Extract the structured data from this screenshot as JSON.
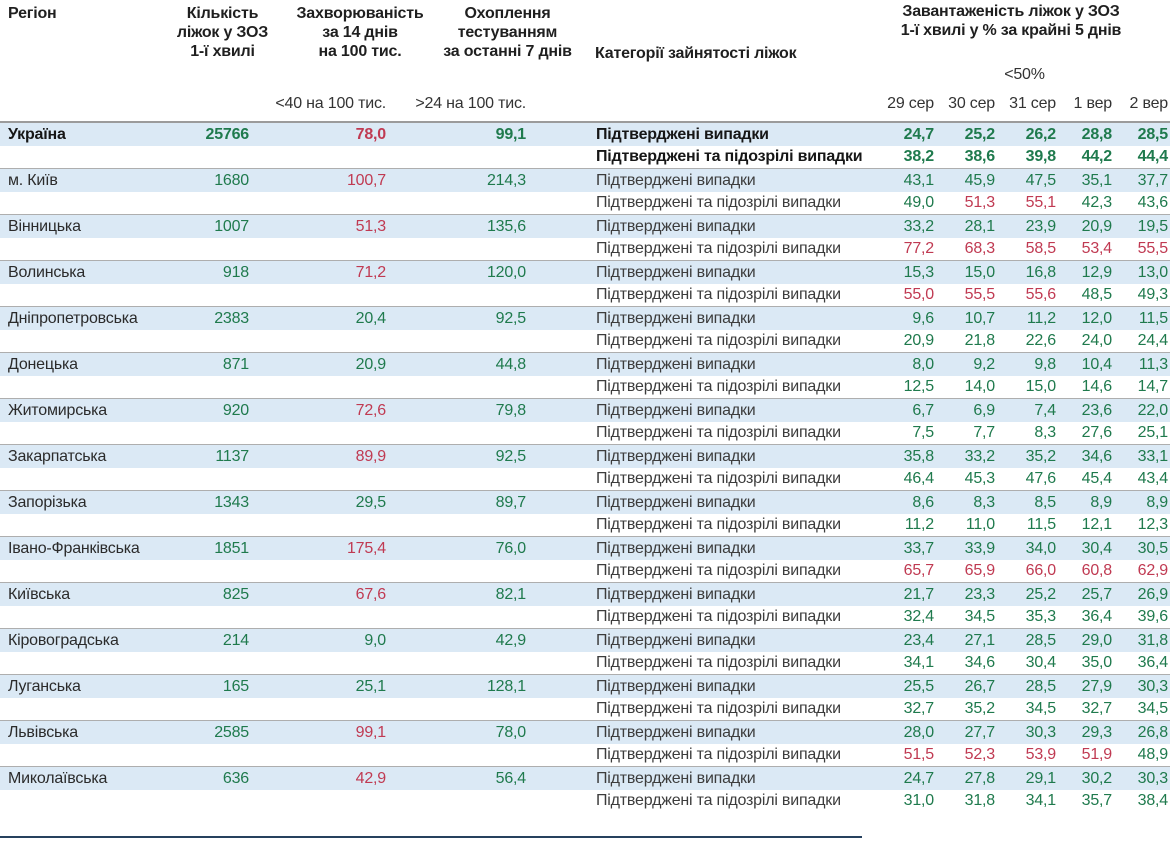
{
  "header": {
    "col_region": "Регіон",
    "col_beds": "Кількість\nліжок у ЗОЗ\n1-ї хвилі",
    "col_incidence": "Захворюваність\nза 14 днів\nна 100 тис.",
    "col_testing": "Охоплення\nтестуванням\nза останні 7 днів",
    "col_category": "Категорії зайнятості ліжок",
    "col_occupancy": "Завантаженість ліжок у ЗОЗ\n1-ї хвилі у % за крайні 5 днів",
    "sub_incidence": "<40 на 100 тис.",
    "sub_testing": ">24 на 100 тис.",
    "sub_occupancy": "<50%"
  },
  "labels": {
    "confirmed": "Підтверджені випадки",
    "suspected": "Підтверджені та підозрілі випадки"
  },
  "colors": {
    "green": "#1f7a4d",
    "red": "#c03a52",
    "row_highlight": "#dbe9f5",
    "separator": "#aeaeae",
    "freeze_line": "#26415e"
  },
  "chart_data": {
    "type": "table",
    "title": "Завантаженість ліжок у ЗОЗ 1-ї хвилі у % за крайні 5 днів",
    "date_columns": [
      "29 сер",
      "30 сер",
      "31 сер",
      "1 вер",
      "2 вер"
    ],
    "category_rows": [
      "Підтверджені випадки",
      "Підтверджені та підозрілі випадки"
    ],
    "rows": [
      {
        "region": "Україна",
        "bold": true,
        "beds": "25766",
        "beds_color": "g",
        "incidence": "78,0",
        "incidence_color": "r",
        "testing": "99,1",
        "testing_color": "g",
        "confirmed": [
          "24,7",
          "25,2",
          "26,2",
          "28,8",
          "28,5"
        ],
        "confirmed_colors": [
          "g",
          "g",
          "g",
          "g",
          "g"
        ],
        "suspected": [
          "38,2",
          "38,6",
          "39,8",
          "44,2",
          "44,4"
        ],
        "suspected_colors": [
          "g",
          "g",
          "g",
          "g",
          "g"
        ]
      },
      {
        "region": "м. Київ",
        "bold": false,
        "beds": "1680",
        "beds_color": "g",
        "incidence": "100,7",
        "incidence_color": "r",
        "testing": "214,3",
        "testing_color": "g",
        "confirmed": [
          "43,1",
          "45,9",
          "47,5",
          "35,1",
          "37,7"
        ],
        "confirmed_colors": [
          "g",
          "g",
          "g",
          "g",
          "g"
        ],
        "suspected": [
          "49,0",
          "51,3",
          "55,1",
          "42,3",
          "43,6"
        ],
        "suspected_colors": [
          "g",
          "r",
          "r",
          "g",
          "g"
        ]
      },
      {
        "region": "Вінницька",
        "bold": false,
        "beds": "1007",
        "beds_color": "g",
        "incidence": "51,3",
        "incidence_color": "r",
        "testing": "135,6",
        "testing_color": "g",
        "confirmed": [
          "33,2",
          "28,1",
          "23,9",
          "20,9",
          "19,5"
        ],
        "confirmed_colors": [
          "g",
          "g",
          "g",
          "g",
          "g"
        ],
        "suspected": [
          "77,2",
          "68,3",
          "58,5",
          "53,4",
          "55,5"
        ],
        "suspected_colors": [
          "r",
          "r",
          "r",
          "r",
          "r"
        ]
      },
      {
        "region": "Волинська",
        "bold": false,
        "beds": "918",
        "beds_color": "g",
        "incidence": "71,2",
        "incidence_color": "r",
        "testing": "120,0",
        "testing_color": "g",
        "confirmed": [
          "15,3",
          "15,0",
          "16,8",
          "12,9",
          "13,0"
        ],
        "confirmed_colors": [
          "g",
          "g",
          "g",
          "g",
          "g"
        ],
        "suspected": [
          "55,0",
          "55,5",
          "55,6",
          "48,5",
          "49,3"
        ],
        "suspected_colors": [
          "r",
          "r",
          "r",
          "g",
          "g"
        ]
      },
      {
        "region": "Дніпропетровська",
        "bold": false,
        "beds": "2383",
        "beds_color": "g",
        "incidence": "20,4",
        "incidence_color": "g",
        "testing": "92,5",
        "testing_color": "g",
        "confirmed": [
          "9,6",
          "10,7",
          "11,2",
          "12,0",
          "11,5"
        ],
        "confirmed_colors": [
          "g",
          "g",
          "g",
          "g",
          "g"
        ],
        "suspected": [
          "20,9",
          "21,8",
          "22,6",
          "24,0",
          "24,4"
        ],
        "suspected_colors": [
          "g",
          "g",
          "g",
          "g",
          "g"
        ]
      },
      {
        "region": "Донецька",
        "bold": false,
        "beds": "871",
        "beds_color": "g",
        "incidence": "20,9",
        "incidence_color": "g",
        "testing": "44,8",
        "testing_color": "g",
        "confirmed": [
          "8,0",
          "9,2",
          "9,8",
          "10,4",
          "11,3"
        ],
        "confirmed_colors": [
          "g",
          "g",
          "g",
          "g",
          "g"
        ],
        "suspected": [
          "12,5",
          "14,0",
          "15,0",
          "14,6",
          "14,7"
        ],
        "suspected_colors": [
          "g",
          "g",
          "g",
          "g",
          "g"
        ]
      },
      {
        "region": "Житомирська",
        "bold": false,
        "beds": "920",
        "beds_color": "g",
        "incidence": "72,6",
        "incidence_color": "r",
        "testing": "79,8",
        "testing_color": "g",
        "confirmed": [
          "6,7",
          "6,9",
          "7,4",
          "23,6",
          "22,0"
        ],
        "confirmed_colors": [
          "g",
          "g",
          "g",
          "g",
          "g"
        ],
        "suspected": [
          "7,5",
          "7,7",
          "8,3",
          "27,6",
          "25,1"
        ],
        "suspected_colors": [
          "g",
          "g",
          "g",
          "g",
          "g"
        ]
      },
      {
        "region": "Закарпатська",
        "bold": false,
        "beds": "1137",
        "beds_color": "g",
        "incidence": "89,9",
        "incidence_color": "r",
        "testing": "92,5",
        "testing_color": "g",
        "confirmed": [
          "35,8",
          "33,2",
          "35,2",
          "34,6",
          "33,1"
        ],
        "confirmed_colors": [
          "g",
          "g",
          "g",
          "g",
          "g"
        ],
        "suspected": [
          "46,4",
          "45,3",
          "47,6",
          "45,4",
          "43,4"
        ],
        "suspected_colors": [
          "g",
          "g",
          "g",
          "g",
          "g"
        ]
      },
      {
        "region": "Запорізька",
        "bold": false,
        "beds": "1343",
        "beds_color": "g",
        "incidence": "29,5",
        "incidence_color": "g",
        "testing": "89,7",
        "testing_color": "g",
        "confirmed": [
          "8,6",
          "8,3",
          "8,5",
          "8,9",
          "8,9"
        ],
        "confirmed_colors": [
          "g",
          "g",
          "g",
          "g",
          "g"
        ],
        "suspected": [
          "11,2",
          "11,0",
          "11,5",
          "12,1",
          "12,3"
        ],
        "suspected_colors": [
          "g",
          "g",
          "g",
          "g",
          "g"
        ]
      },
      {
        "region": "Івано-Франківська",
        "bold": false,
        "beds": "1851",
        "beds_color": "g",
        "incidence": "175,4",
        "incidence_color": "r",
        "testing": "76,0",
        "testing_color": "g",
        "confirmed": [
          "33,7",
          "33,9",
          "34,0",
          "30,4",
          "30,5"
        ],
        "confirmed_colors": [
          "g",
          "g",
          "g",
          "g",
          "g"
        ],
        "suspected": [
          "65,7",
          "65,9",
          "66,0",
          "60,8",
          "62,9"
        ],
        "suspected_colors": [
          "r",
          "r",
          "r",
          "r",
          "r"
        ]
      },
      {
        "region": "Київська",
        "bold": false,
        "beds": "825",
        "beds_color": "g",
        "incidence": "67,6",
        "incidence_color": "r",
        "testing": "82,1",
        "testing_color": "g",
        "confirmed": [
          "21,7",
          "23,3",
          "25,2",
          "25,7",
          "26,9"
        ],
        "confirmed_colors": [
          "g",
          "g",
          "g",
          "g",
          "g"
        ],
        "suspected": [
          "32,4",
          "34,5",
          "35,3",
          "36,4",
          "39,6"
        ],
        "suspected_colors": [
          "g",
          "g",
          "g",
          "g",
          "g"
        ]
      },
      {
        "region": "Кіровоградська",
        "bold": false,
        "beds": "214",
        "beds_color": "g",
        "incidence": "9,0",
        "incidence_color": "g",
        "testing": "42,9",
        "testing_color": "g",
        "confirmed": [
          "23,4",
          "27,1",
          "28,5",
          "29,0",
          "31,8"
        ],
        "confirmed_colors": [
          "g",
          "g",
          "g",
          "g",
          "g"
        ],
        "suspected": [
          "34,1",
          "34,6",
          "30,4",
          "35,0",
          "36,4"
        ],
        "suspected_colors": [
          "g",
          "g",
          "g",
          "g",
          "g"
        ]
      },
      {
        "region": "Луганська",
        "bold": false,
        "beds": "165",
        "beds_color": "g",
        "incidence": "25,1",
        "incidence_color": "g",
        "testing": "128,1",
        "testing_color": "g",
        "confirmed": [
          "25,5",
          "26,7",
          "28,5",
          "27,9",
          "30,3"
        ],
        "confirmed_colors": [
          "g",
          "g",
          "g",
          "g",
          "g"
        ],
        "suspected": [
          "32,7",
          "35,2",
          "34,5",
          "32,7",
          "34,5"
        ],
        "suspected_colors": [
          "g",
          "g",
          "g",
          "g",
          "g"
        ]
      },
      {
        "region": "Львівська",
        "bold": false,
        "beds": "2585",
        "beds_color": "g",
        "incidence": "99,1",
        "incidence_color": "r",
        "testing": "78,0",
        "testing_color": "g",
        "confirmed": [
          "28,0",
          "27,7",
          "30,3",
          "29,3",
          "26,8"
        ],
        "confirmed_colors": [
          "g",
          "g",
          "g",
          "g",
          "g"
        ],
        "suspected": [
          "51,5",
          "52,3",
          "53,9",
          "51,9",
          "48,9"
        ],
        "suspected_colors": [
          "r",
          "r",
          "r",
          "r",
          "g"
        ]
      },
      {
        "region": "Миколаївська",
        "bold": false,
        "beds": "636",
        "beds_color": "g",
        "incidence": "42,9",
        "incidence_color": "r",
        "testing": "56,4",
        "testing_color": "g",
        "confirmed": [
          "24,7",
          "27,8",
          "29,1",
          "30,2",
          "30,3"
        ],
        "confirmed_colors": [
          "g",
          "g",
          "g",
          "g",
          "g"
        ],
        "suspected": [
          "31,0",
          "31,8",
          "34,1",
          "35,7",
          "38,4"
        ],
        "suspected_colors": [
          "g",
          "g",
          "g",
          "g",
          "g"
        ]
      }
    ]
  }
}
